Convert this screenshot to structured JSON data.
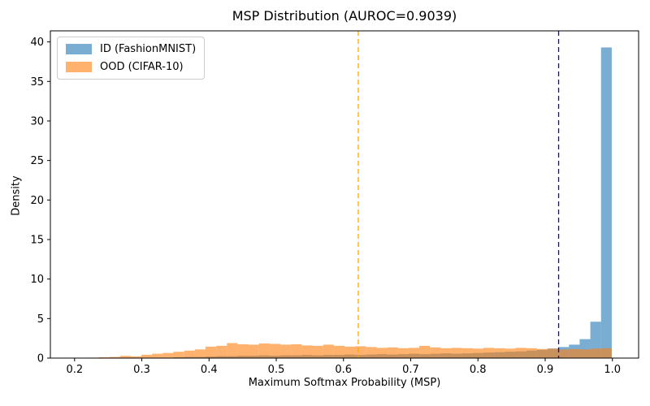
{
  "title": "MSP Distribution (AUROC=0.9039)",
  "chart_data": {
    "type": "bar",
    "subtype": "overlapping-density-histogram",
    "title": "MSP Distribution (AUROC=0.9039)",
    "xlabel": "Maximum Softmax Probability (MSP)",
    "ylabel": "Density",
    "xlim": [
      0.164,
      1.039
    ],
    "ylim": [
      0,
      41.4
    ],
    "xtick_labels": [
      "0.2",
      "0.3",
      "0.4",
      "0.5",
      "0.6",
      "0.7",
      "0.8",
      "0.9",
      "1.0"
    ],
    "ytick_labels": [
      "0",
      "5",
      "10",
      "15",
      "20",
      "25",
      "30",
      "35",
      "40"
    ],
    "grid": false,
    "bin_start": 0.204,
    "bin_width": 0.0159,
    "bar_alpha": 0.6,
    "series": [
      {
        "name": "ID (FashionMNIST)",
        "slug": "id-fashionmnist",
        "color": "#1f77b4",
        "values": [
          0,
          0,
          0,
          0,
          0,
          0,
          0,
          0,
          0.05,
          0.1,
          0.15,
          0.15,
          0.2,
          0.25,
          0.25,
          0.3,
          0.3,
          0.35,
          0.3,
          0.35,
          0.35,
          0.4,
          0.35,
          0.4,
          0.4,
          0.45,
          0.4,
          0.45,
          0.5,
          0.45,
          0.5,
          0.55,
          0.5,
          0.55,
          0.6,
          0.55,
          0.6,
          0.65,
          0.7,
          0.75,
          0.8,
          0.85,
          0.95,
          1.05,
          1.2,
          1.4,
          1.7,
          2.4,
          4.6,
          39.3
        ]
      },
      {
        "name": "OOD (CIFAR-10)",
        "slug": "ood-cifar10",
        "color": "#ff7f0e",
        "values": [
          0.03,
          0.06,
          0.1,
          0.15,
          0.28,
          0.22,
          0.42,
          0.55,
          0.65,
          0.8,
          0.95,
          1.1,
          1.45,
          1.55,
          1.9,
          1.75,
          1.7,
          1.85,
          1.8,
          1.7,
          1.75,
          1.6,
          1.55,
          1.7,
          1.55,
          1.45,
          1.5,
          1.4,
          1.3,
          1.35,
          1.25,
          1.3,
          1.55,
          1.35,
          1.25,
          1.3,
          1.25,
          1.2,
          1.3,
          1.25,
          1.2,
          1.3,
          1.25,
          1.15,
          1.2,
          1.1,
          1.15,
          1.1,
          1.2,
          1.25
        ]
      }
    ],
    "vlines": [
      {
        "x": 0.622,
        "color": "#ffa500",
        "style": "dashed",
        "slug": "ood-mean-line"
      },
      {
        "x": 0.92,
        "color": "#0000ff",
        "style": "dashed",
        "slug": "id-mean-line"
      }
    ],
    "legend": {
      "position": "upper-left",
      "entries": [
        {
          "label": "ID (FashionMNIST)",
          "swatch_color": "#79ADD2"
        },
        {
          "label": "OOD (CIFAR-10)",
          "swatch_color": "#FFB26E"
        }
      ]
    }
  }
}
